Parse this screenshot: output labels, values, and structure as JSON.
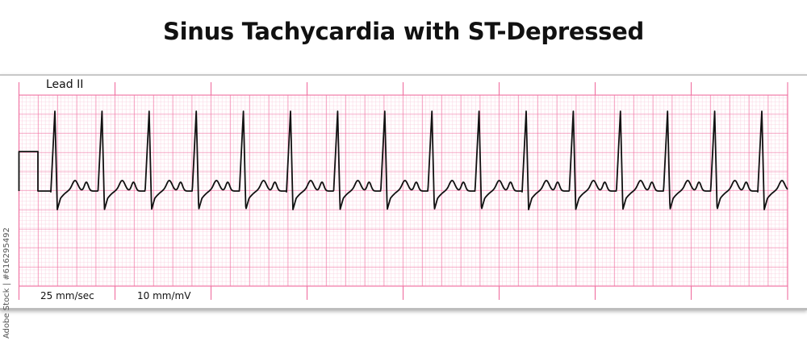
{
  "title": "Sinus Tachycardia with ST-Depressed",
  "strip": {
    "lead": "Lead II",
    "paper_speed": "25 mm/sec",
    "gain": "10 mm/mV",
    "rhythm": "sinus tachycardia",
    "beats_shown": 16,
    "grid_major_color": "#f06ea0",
    "grid_minor_color": "#f9c8da",
    "trace_color": "#111111"
  },
  "credit": "Adobe Stock | #616295492"
}
